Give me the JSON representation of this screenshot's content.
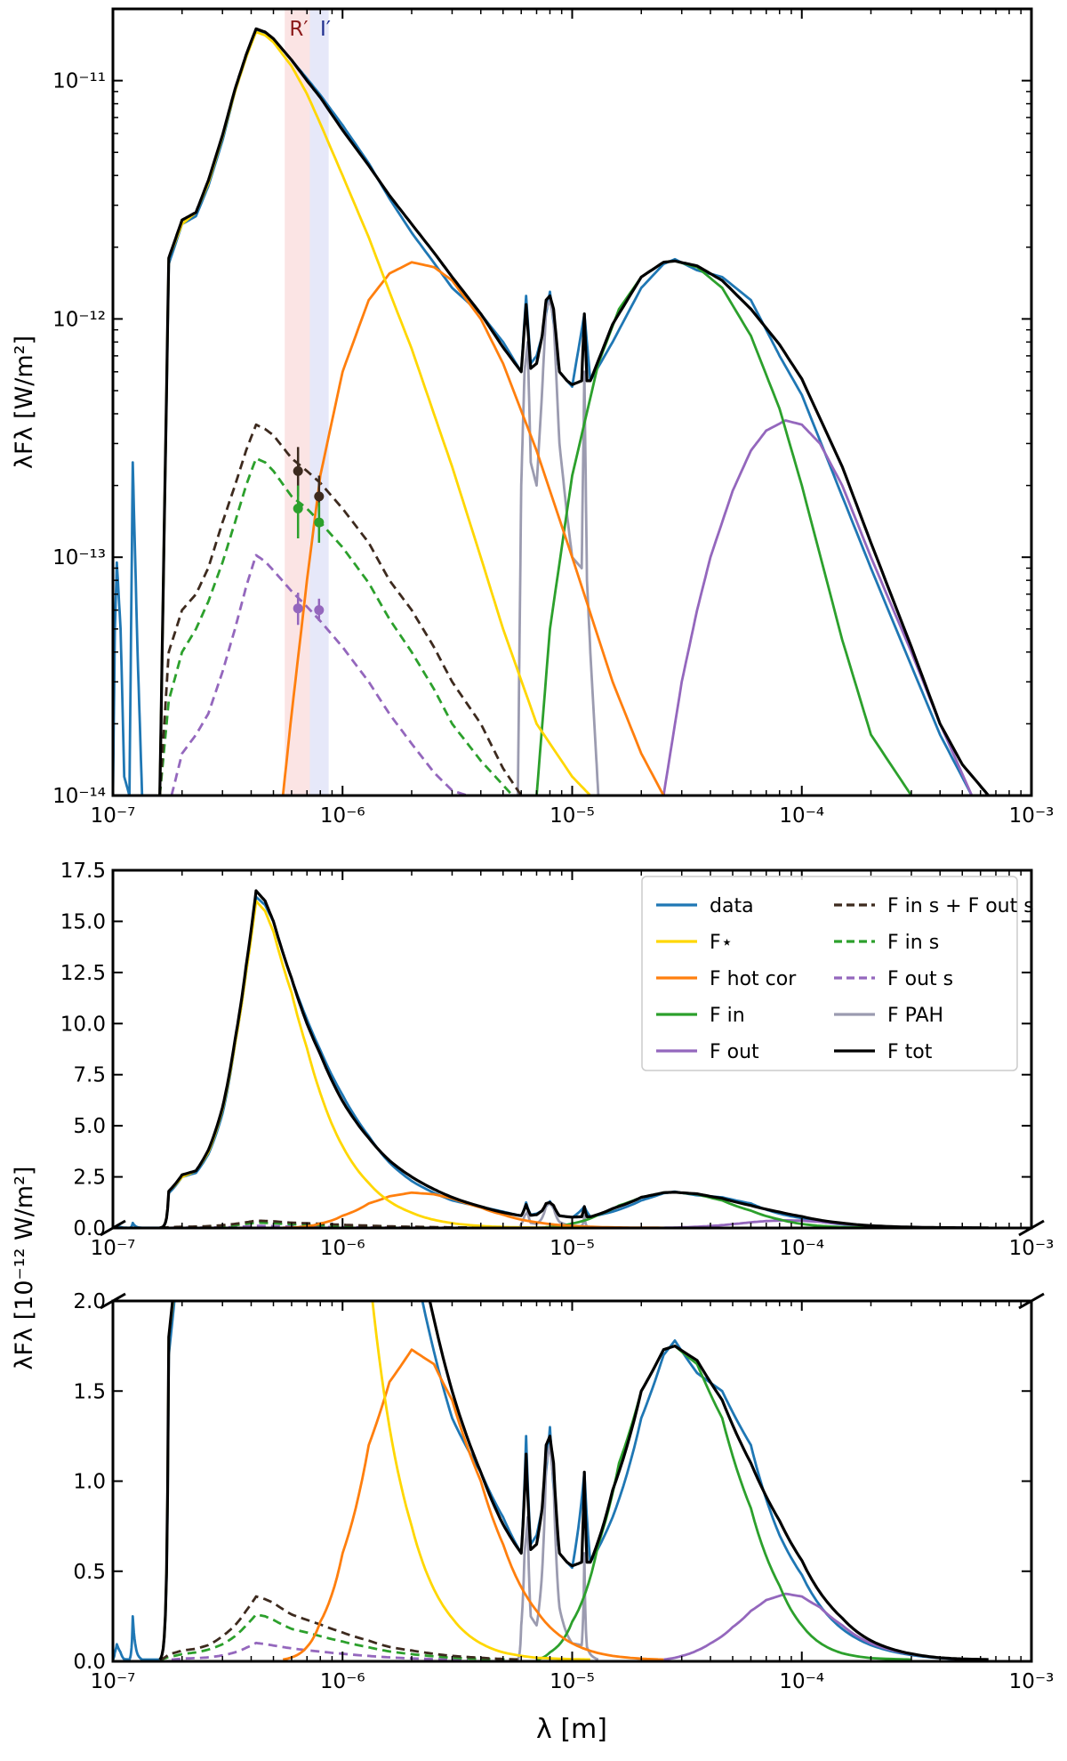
{
  "figure": {
    "x_label": "λ [m]",
    "panels": [
      {
        "id": "top",
        "scale": "log",
        "y_label": "λFλ [W/m²]",
        "y_ticks": [
          "10⁻¹⁴",
          "10⁻¹³",
          "10⁻¹²",
          "10⁻¹¹"
        ],
        "x_ticks": [
          "10⁻⁷",
          "10⁻⁶",
          "10⁻⁵",
          "10⁻⁴",
          "10⁻³"
        ],
        "band_labels": [
          "R′",
          "I′"
        ]
      },
      {
        "id": "middle",
        "scale": "linear",
        "y_ticks": [
          "0.0",
          "2.5",
          "5.0",
          "7.5",
          "10.0",
          "12.5",
          "15.0",
          "17.5"
        ],
        "x_ticks": [
          "10⁻⁷",
          "10⁻⁶",
          "10⁻⁵",
          "10⁻⁴",
          "10⁻³"
        ]
      },
      {
        "id": "bottom",
        "scale": "linear",
        "y_ticks": [
          "0.0",
          "0.5",
          "1.0",
          "1.5",
          "2.0"
        ],
        "x_ticks": [
          "10⁻⁷",
          "10⁻⁶",
          "10⁻⁵",
          "10⁻⁴",
          "10⁻³"
        ]
      }
    ],
    "shared_y_label": "λFλ [10⁻¹² W/m²]"
  },
  "legend": {
    "items": [
      {
        "key": "data",
        "label": "data",
        "color": "#1f77b4",
        "dash": false
      },
      {
        "key": "star",
        "label": "F⋆",
        "color": "#ffd700",
        "dash": false
      },
      {
        "key": "hot",
        "label": "F hot cor",
        "color": "#ff7f0e",
        "dash": false
      },
      {
        "key": "in",
        "label": "F in",
        "color": "#2ca02c",
        "dash": false
      },
      {
        "key": "out",
        "label": "F out",
        "color": "#9467bd",
        "dash": false
      },
      {
        "key": "sin_out",
        "label": "F in s + F out s",
        "color": "#3d2a1e",
        "dash": true
      },
      {
        "key": "sin",
        "label": "F in s",
        "color": "#2ca02c",
        "dash": true
      },
      {
        "key": "sout",
        "label": "F out s",
        "color": "#9467bd",
        "dash": true
      },
      {
        "key": "pah",
        "label": "F PAH",
        "color": "#9b9bb0",
        "dash": false
      },
      {
        "key": "tot",
        "label": "F tot",
        "color": "#000000",
        "dash": false
      }
    ]
  },
  "chart_data": {
    "type": "line",
    "title": "",
    "xlabel": "λ [m]",
    "ylabel": "λFλ [W/m²]",
    "xscale": "log",
    "xlim": [
      1e-07,
      0.001
    ],
    "ylim_log": [
      1e-14,
      2e-11
    ],
    "ylim_mid_e12": [
      0,
      17.5
    ],
    "ylim_bot_e12": [
      0,
      2.0
    ],
    "bands": [
      {
        "name": "R′",
        "lo": 5.6e-07,
        "hi": 7.2e-07,
        "color": "#f6c4c4"
      },
      {
        "name": "I′",
        "lo": 7.2e-07,
        "hi": 8.7e-07,
        "color": "#c8ccf2"
      }
    ],
    "series": [
      {
        "key": "star",
        "name": "F⋆",
        "x": [
          1.6e-07,
          1.75e-07,
          2e-07,
          2.3e-07,
          2.6e-07,
          3e-07,
          3.4e-07,
          3.8e-07,
          4.2e-07,
          4.6e-07,
          5e-07,
          6e-07,
          7e-07,
          8e-07,
          1e-06,
          1.3e-06,
          1.6e-06,
          2e-06,
          2.5e-06,
          3e-06,
          4e-06,
          5e-06,
          7e-06,
          1e-05,
          1.2e-05
        ],
        "y": [
          1e-14,
          1.8e-12,
          2.5e-12,
          2.8e-12,
          3.7e-12,
          5.8e-12,
          9e-12,
          1.25e-11,
          1.6e-11,
          1.55e-11,
          1.45e-11,
          1.15e-11,
          8.8e-12,
          6.6e-12,
          4e-12,
          2.2e-12,
          1.3e-12,
          7.5e-13,
          4e-13,
          2.4e-13,
          1e-13,
          5e-14,
          2e-14,
          1.2e-14,
          1e-14
        ]
      },
      {
        "key": "hot",
        "name": "F hot cor",
        "x": [
          5.5e-07,
          6e-07,
          7e-07,
          8e-07,
          1e-06,
          1.3e-06,
          1.6e-06,
          2e-06,
          2.5e-06,
          3e-06,
          4e-06,
          5e-06,
          7e-06,
          1e-05,
          1.5e-05,
          2e-05,
          2.5e-05
        ],
        "y": [
          1e-14,
          2.2e-14,
          8e-14,
          2.2e-13,
          6e-13,
          1.2e-12,
          1.55e-12,
          1.73e-12,
          1.65e-12,
          1.45e-12,
          1e-12,
          6.5e-13,
          2.8e-13,
          1e-13,
          3e-14,
          1.5e-14,
          1e-14
        ]
      },
      {
        "key": "in",
        "name": "F in",
        "x": [
          7e-06,
          8e-06,
          1e-05,
          1.3e-05,
          1.6e-05,
          2e-05,
          2.5e-05,
          2.8e-05,
          3.5e-05,
          4.5e-05,
          6e-05,
          8e-05,
          0.0001,
          0.00015,
          0.0002,
          0.0003
        ],
        "y": [
          1e-14,
          5e-14,
          2.2e-13,
          6.5e-13,
          1.1e-12,
          1.5e-12,
          1.73e-12,
          1.75e-12,
          1.65e-12,
          1.35e-12,
          8.5e-13,
          4.2e-13,
          2e-13,
          4.5e-14,
          1.8e-14,
          1e-14
        ]
      },
      {
        "key": "out",
        "name": "F out",
        "x": [
          2.5e-05,
          3e-05,
          3.5e-05,
          4e-05,
          5e-05,
          6e-05,
          7e-05,
          8.5e-05,
          0.0001,
          0.00012,
          0.00015,
          0.0002,
          0.0003,
          0.0004,
          0.00055
        ],
        "y": [
          1e-14,
          3e-14,
          6e-14,
          1e-13,
          1.9e-13,
          2.8e-13,
          3.4e-13,
          3.75e-13,
          3.6e-13,
          3e-13,
          2e-13,
          1e-13,
          4e-14,
          2e-14,
          1e-14
        ]
      },
      {
        "key": "sin_out",
        "name": "F in s + F out s",
        "dash": true,
        "x": [
          1.6e-07,
          1.75e-07,
          2e-07,
          2.3e-07,
          2.6e-07,
          3e-07,
          3.4e-07,
          3.8e-07,
          4.2e-07,
          4.6e-07,
          5e-07,
          6e-07,
          7e-07,
          8e-07,
          1e-06,
          1.3e-06,
          1.6e-06,
          2e-06,
          2.5e-06,
          3e-06,
          4e-06,
          5e-06,
          6e-06
        ],
        "y": [
          1e-14,
          4e-14,
          6e-14,
          7e-14,
          9e-14,
          1.4e-13,
          2e-13,
          2.8e-13,
          3.6e-13,
          3.45e-13,
          3.25e-13,
          2.6e-13,
          2.3e-13,
          2.05e-13,
          1.6e-13,
          1.15e-13,
          8e-14,
          6e-14,
          4.2e-14,
          3e-14,
          2e-14,
          1.3e-14,
          1e-14
        ]
      },
      {
        "key": "sin",
        "name": "F in s",
        "dash": true,
        "x": [
          1.6e-07,
          1.75e-07,
          2e-07,
          2.3e-07,
          2.6e-07,
          3e-07,
          3.4e-07,
          3.8e-07,
          4.2e-07,
          4.6e-07,
          5e-07,
          6e-07,
          7e-07,
          8e-07,
          1e-06,
          1.3e-06,
          1.6e-06,
          2e-06,
          2.5e-06,
          3e-06,
          4e-06,
          5.5e-06
        ],
        "y": [
          1e-14,
          2.5e-14,
          4e-14,
          5e-14,
          6.5e-14,
          9.5e-14,
          1.4e-13,
          2e-13,
          2.6e-13,
          2.5e-13,
          2.3e-13,
          1.8e-13,
          1.6e-13,
          1.4e-13,
          1.1e-13,
          7.8e-14,
          5.5e-14,
          4e-14,
          2.8e-14,
          2e-14,
          1.4e-14,
          1e-14
        ]
      },
      {
        "key": "sout",
        "name": "F out s",
        "dash": true,
        "x": [
          1.8e-07,
          2e-07,
          2.3e-07,
          2.6e-07,
          3e-07,
          3.4e-07,
          3.8e-07,
          4.2e-07,
          4.6e-07,
          5e-07,
          6e-07,
          7e-07,
          8e-07,
          1e-06,
          1.3e-06,
          1.6e-06,
          2e-06,
          2.5e-06,
          3e-06,
          3.5e-06
        ],
        "y": [
          1e-14,
          1.5e-14,
          1.8e-14,
          2.2e-14,
          3.3e-14,
          5e-14,
          7.5e-14,
          1.02e-13,
          9.6e-14,
          8.8e-14,
          7.2e-14,
          6.2e-14,
          5.4e-14,
          4.2e-14,
          3e-14,
          2.2e-14,
          1.65e-14,
          1.25e-14,
          1.05e-14,
          1e-14
        ]
      },
      {
        "key": "pah",
        "name": "F PAH",
        "x": [
          5.8e-06,
          6e-06,
          6.2e-06,
          6.4e-06,
          6.6e-06,
          7e-06,
          7.4e-06,
          7.7e-06,
          8e-06,
          8.3e-06,
          8.8e-06,
          9.5e-06,
          1e-05,
          1.1e-05,
          1.13e-05,
          1.16e-05,
          1.2e-05,
          1.27e-05,
          1.3e-05
        ],
        "y": [
          1e-14,
          2e-13,
          6e-13,
          8e-13,
          2.5e-13,
          2e-13,
          5e-13,
          1.1e-12,
          1.2e-12,
          1e-12,
          3e-13,
          1.5e-13,
          1e-13,
          9e-14,
          6e-13,
          8e-14,
          4e-14,
          1.5e-14,
          1e-14
        ]
      },
      {
        "key": "data",
        "name": "data",
        "x": [
          1e-07,
          1.02e-07,
          1.04e-07,
          1.08e-07,
          1.12e-07,
          1.18e-07,
          1.22e-07,
          1.28e-07,
          1.34e-07,
          1.38e-07,
          1.42e-07,
          1.5e-07,
          1.6e-07,
          1.75e-07,
          2e-07,
          2.3e-07,
          2.6e-07,
          3e-07,
          3.4e-07,
          3.8e-07,
          4.2e-07,
          4.6e-07,
          5e-07,
          6e-07,
          7e-07,
          8e-07,
          1e-06,
          1.3e-06,
          1.6e-06,
          2e-06,
          2.5e-06,
          3e-06,
          4e-06,
          5e-06,
          6e-06,
          6.3e-06,
          6.6e-06,
          7e-06,
          7.4e-06,
          8e-06,
          8.8e-06,
          9.5e-06,
          1e-05,
          1.13e-05,
          1.2e-05,
          1.5e-05,
          2e-05,
          2.5e-05,
          2.8e-05,
          3.5e-05,
          4.5e-05,
          6e-05,
          7e-05,
          8e-05,
          0.0001,
          0.00015,
          0.0002,
          0.0003,
          0.0004,
          0.00055
        ],
        "y": [
          1e-14,
          5e-14,
          9.5e-14,
          5e-14,
          1.2e-14,
          1e-14,
          2.5e-13,
          4e-14,
          1e-14,
          1e-14,
          1e-14,
          1e-14,
          1e-14,
          1.7e-12,
          2.5e-12,
          2.7e-12,
          3.6e-12,
          5.6e-12,
          9e-12,
          1.25e-11,
          1.62e-11,
          1.58e-11,
          1.5e-11,
          1.22e-11,
          1.02e-11,
          8.7e-12,
          6.5e-12,
          4.5e-12,
          3.2e-12,
          2.3e-12,
          1.72e-12,
          1.35e-12,
          1.05e-12,
          8e-13,
          6e-13,
          1.25e-12,
          6.5e-13,
          7e-13,
          8.5e-13,
          1.3e-12,
          6e-13,
          5.5e-13,
          5.2e-13,
          1.05e-12,
          5.5e-13,
          8e-13,
          1.35e-12,
          1.7e-12,
          1.78e-12,
          1.6e-12,
          1.5e-12,
          1.2e-12,
          9e-13,
          7e-13,
          4.8e-13,
          1.8e-13,
          9e-14,
          3.5e-14,
          1.8e-14,
          1e-14
        ]
      },
      {
        "key": "tot",
        "name": "F tot",
        "x": [
          1.6e-07,
          1.75e-07,
          2e-07,
          2.3e-07,
          2.6e-07,
          3e-07,
          3.4e-07,
          3.8e-07,
          4.2e-07,
          4.6e-07,
          5e-07,
          6e-07,
          7e-07,
          8e-07,
          1e-06,
          1.3e-06,
          1.6e-06,
          2e-06,
          2.5e-06,
          3e-06,
          4e-06,
          5e-06,
          6e-06,
          6.3e-06,
          6.6e-06,
          7e-06,
          7.4e-06,
          7.7e-06,
          8e-06,
          8.3e-06,
          8.8e-06,
          9.5e-06,
          1e-05,
          1.1e-05,
          1.13e-05,
          1.16e-05,
          1.2e-05,
          1.5e-05,
          2e-05,
          2.5e-05,
          2.8e-05,
          3.5e-05,
          4.5e-05,
          6e-05,
          8e-05,
          0.0001,
          0.00015,
          0.0002,
          0.0003,
          0.0004,
          0.0005,
          0.00065
        ],
        "y": [
          1e-14,
          1.8e-12,
          2.6e-12,
          2.8e-12,
          3.8e-12,
          5.9e-12,
          9.2e-12,
          1.28e-11,
          1.65e-11,
          1.6e-11,
          1.5e-11,
          1.22e-11,
          1e-11,
          8.5e-12,
          6.2e-12,
          4.4e-12,
          3.3e-12,
          2.5e-12,
          1.9e-12,
          1.5e-12,
          1.05e-12,
          7.6e-13,
          6e-13,
          1.15e-12,
          6.2e-13,
          6.5e-13,
          8.5e-13,
          1.2e-12,
          1.25e-12,
          1.1e-12,
          6e-13,
          5.5e-13,
          5.3e-13,
          5.5e-13,
          1.05e-12,
          5.5e-13,
          5.5e-13,
          9.5e-13,
          1.5e-12,
          1.73e-12,
          1.75e-12,
          1.67e-12,
          1.45e-12,
          1.1e-12,
          7.8e-13,
          5.6e-13,
          2.4e-13,
          1.15e-13,
          4.2e-14,
          2e-14,
          1.35e-14,
          1e-14
        ]
      }
    ],
    "photometry": [
      {
        "set": "sin_out",
        "color": "#3d2a1e",
        "points": [
          {
            "x": 6.4e-07,
            "y": 2.3e-13,
            "elo": 1.8e-13,
            "ehi": 2.9e-13
          },
          {
            "x": 7.9e-07,
            "y": 1.8e-13,
            "elo": 1.45e-13,
            "ehi": 2.2e-13
          }
        ]
      },
      {
        "set": "sin",
        "color": "#2ca02c",
        "points": [
          {
            "x": 6.4e-07,
            "y": 1.6e-13,
            "elo": 1.2e-13,
            "ehi": 2e-13
          },
          {
            "x": 7.9e-07,
            "y": 1.4e-13,
            "elo": 1.15e-13,
            "ehi": 1.7e-13
          }
        ]
      },
      {
        "set": "sout",
        "color": "#9467bd",
        "points": [
          {
            "x": 6.4e-07,
            "y": 6.1e-14,
            "elo": 5.2e-14,
            "ehi": 7.1e-14
          },
          {
            "x": 7.9e-07,
            "y": 6e-14,
            "elo": 5.4e-14,
            "ehi": 6.7e-14
          }
        ]
      }
    ]
  }
}
